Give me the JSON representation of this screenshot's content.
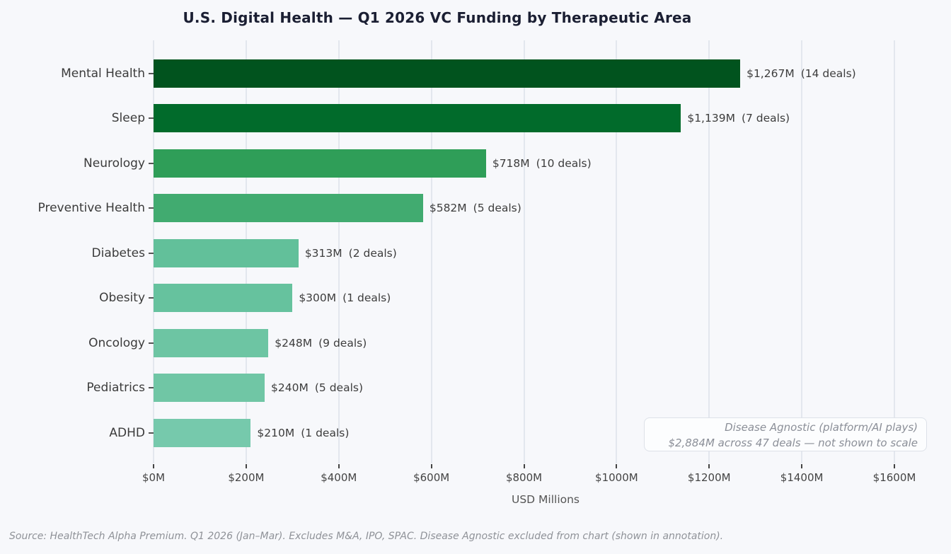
{
  "chart_data": {
    "type": "bar",
    "orientation": "horizontal",
    "title": "U.S. Digital Health — Q1 2026 VC Funding by Therapeutic Area",
    "xlabel": "USD Millions",
    "xlim": [
      0,
      1600
    ],
    "x_ticks": [
      0,
      200,
      400,
      600,
      800,
      1000,
      1200,
      1400,
      1600
    ],
    "x_tick_labels": [
      "$0M",
      "$200M",
      "$400M",
      "$600M",
      "$800M",
      "$1000M",
      "$1200M",
      "$1400M",
      "$1600M"
    ],
    "grid": true,
    "legend": false,
    "categories": [
      "Mental Health",
      "Sleep",
      "Neurology",
      "Preventive Health",
      "Diabetes",
      "Obesity",
      "Oncology",
      "Pediatrics",
      "ADHD"
    ],
    "values": [
      1267,
      1139,
      718,
      582,
      313,
      300,
      248,
      240,
      210
    ],
    "deals": [
      14,
      7,
      10,
      5,
      2,
      1,
      9,
      5,
      1
    ],
    "value_labels": [
      "$1,267M",
      "$1,139M",
      "$718M",
      "$582M",
      "$313M",
      "$300M",
      "$248M",
      "$240M",
      "$210M"
    ],
    "deal_labels": [
      "(14 deals)",
      "(7 deals)",
      "(10 deals)",
      "(5 deals)",
      "(2 deals)",
      "(1 deals)",
      "(9 deals)",
      "(5 deals)",
      "(1 deals)"
    ],
    "bar_colors": [
      "#01531e",
      "#016b2b",
      "#2f9e58",
      "#41ab70",
      "#62c09a",
      "#66c29e",
      "#6dc5a3",
      "#70c6a5",
      "#76c9ac"
    ],
    "annotation": {
      "line1": "Disease Agnostic (platform/AI plays)",
      "line2": "$2,884M across 47 deals — not shown to scale"
    },
    "footer": "Source: HealthTech Alpha Premium. Q1 2026 (Jan–Mar). Excludes M&A, IPO, SPAC. Disease Agnostic excluded from chart (shown in annotation)."
  },
  "colors": {
    "background": "#f7f8fb",
    "grid": "#e3e7ee",
    "title": "#1b1f33",
    "category_label": "#3b3b3b",
    "value_label": "#3d3d3d",
    "tick_label": "#444444",
    "axis_label": "#555555",
    "annotation_text": "#8b8f98",
    "annotation_border": "#dde1e8",
    "annotation_bg": "#fcfdfe",
    "footer": "#8f9298"
  }
}
